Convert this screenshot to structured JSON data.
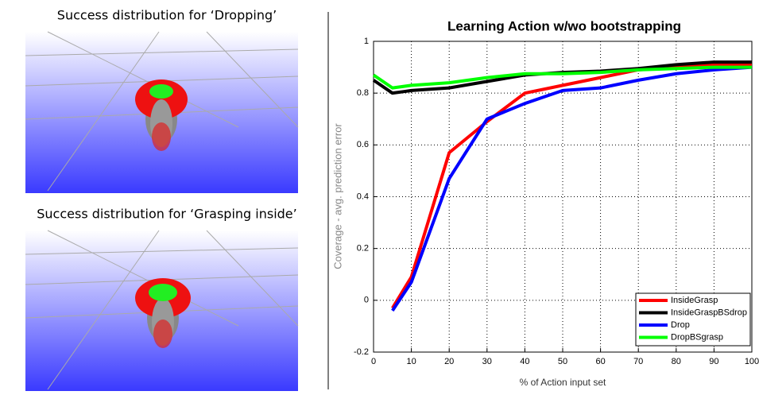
{
  "panels": [
    {
      "caption": "Success distribution for ‘Dropping’"
    },
    {
      "caption": "Success distribution for ‘Grasping inside’"
    }
  ],
  "chart_data": {
    "type": "line",
    "title": "Learning Action w/wo bootstrapping",
    "x_label": "% of Action input set",
    "y_label": "Coverage - avg. prediction error",
    "x": [
      0,
      5,
      10,
      20,
      30,
      40,
      50,
      60,
      70,
      80,
      90,
      100
    ],
    "series": [
      {
        "name": "InsideGrasp",
        "color": "#ff0000",
        "values": [
          null,
          -0.03,
          0.09,
          0.57,
          0.69,
          0.8,
          0.83,
          0.86,
          0.89,
          0.9,
          0.91,
          0.91
        ]
      },
      {
        "name": "InsideGraspBSdrop",
        "color": "#000000",
        "values": [
          0.85,
          0.8,
          0.81,
          0.82,
          0.845,
          0.87,
          0.88,
          0.885,
          0.895,
          0.91,
          0.92,
          0.92
        ]
      },
      {
        "name": "Drop",
        "color": "#0000ff",
        "values": [
          null,
          -0.04,
          0.07,
          0.47,
          0.7,
          0.76,
          0.81,
          0.82,
          0.85,
          0.875,
          0.89,
          0.9
        ]
      },
      {
        "name": "DropBSgrasp",
        "color": "#00ff00",
        "values": [
          0.87,
          0.82,
          0.83,
          0.84,
          0.86,
          0.875,
          0.875,
          0.88,
          0.89,
          0.895,
          0.9,
          0.9
        ]
      }
    ],
    "xlim": [
      0,
      100
    ],
    "xticks": [
      0,
      10,
      20,
      30,
      40,
      50,
      60,
      70,
      80,
      90,
      100
    ],
    "ylim": [
      -0.2,
      1
    ],
    "yticks": [
      -0.2,
      0,
      0.2,
      0.4,
      0.6,
      0.8,
      1
    ],
    "grid": true,
    "legend": "lower right"
  }
}
